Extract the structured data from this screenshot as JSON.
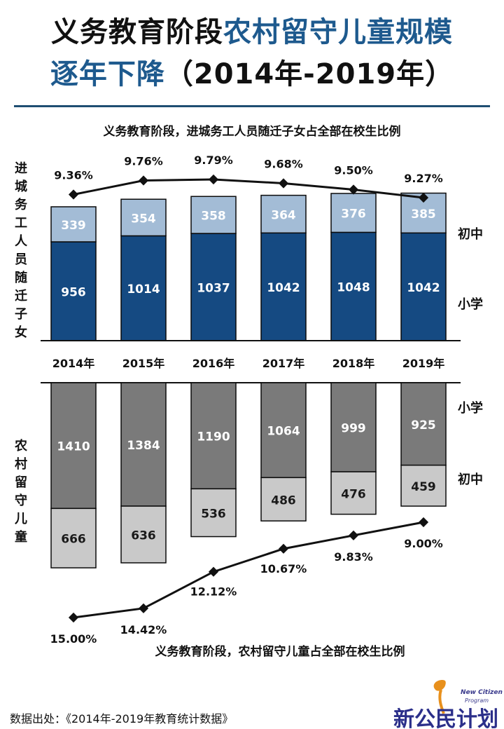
{
  "title": {
    "line1_dark": "义务教育阶段",
    "line1_blue": "农村留守儿童规模",
    "line2_blue": "逐年下降",
    "line2_dark": "（2014年-2019年）"
  },
  "chart_data": {
    "type": "bar",
    "categories": [
      "2014年",
      "2015年",
      "2016年",
      "2017年",
      "2018年",
      "2019年"
    ],
    "top": {
      "title": "义务教育阶段，进城务工人员随迁子女占全部在校生比例",
      "ylabel": "进城务工人员随迁子女",
      "series": [
        {
          "name": "小学",
          "values": [
            956,
            1014,
            1037,
            1042,
            1048,
            1042
          ],
          "color": "#154a82"
        },
        {
          "name": "初中",
          "values": [
            339,
            354,
            358,
            364,
            376,
            385
          ],
          "color": "#a3bcd6"
        }
      ],
      "ratio_line": {
        "values": [
          9.36,
          9.76,
          9.79,
          9.68,
          9.5,
          9.27
        ],
        "labels": [
          "9.36%",
          "9.76%",
          "9.79%",
          "9.68%",
          "9.50%",
          "9.27%"
        ]
      }
    },
    "bottom": {
      "title": "义务教育阶段，农村留守儿童占全部在校生比例",
      "ylabel": "农村留守儿童",
      "series": [
        {
          "name": "小学",
          "values": [
            1410,
            1384,
            1190,
            1064,
            999,
            925
          ],
          "color": "#7a7a7a"
        },
        {
          "name": "初中",
          "values": [
            666,
            636,
            536,
            486,
            476,
            459
          ],
          "color": "#c9c9c9"
        }
      ],
      "ratio_line": {
        "values": [
          15.0,
          14.42,
          12.12,
          10.67,
          9.83,
          9.0
        ],
        "labels": [
          "15.00%",
          "14.42%",
          "12.12%",
          "10.67%",
          "9.83%",
          "9.00%"
        ]
      }
    }
  },
  "source": "数据出处：《2014年-2019年教育统计数据》",
  "logo": {
    "cn": "新公民计划",
    "en_line1": "New Citizen",
    "en_line2": "Program"
  }
}
